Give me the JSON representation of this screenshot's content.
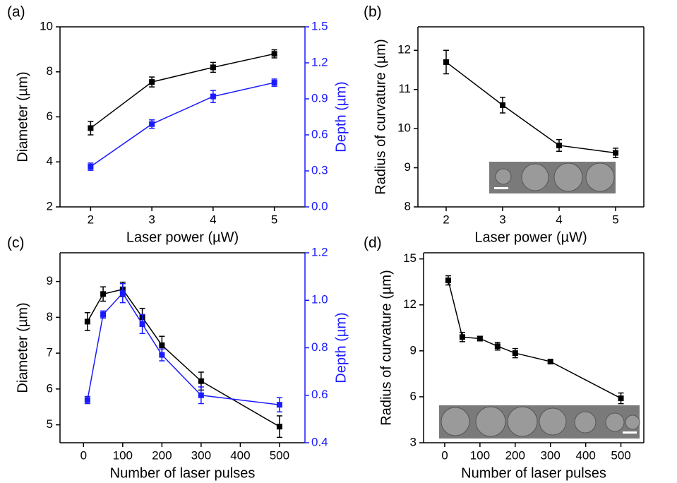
{
  "chart_data": [
    {
      "type": "line",
      "panel_label": "(a)",
      "x_label": "Laser power (µW)",
      "y_label": "Diameter (µm)",
      "y2_label": "Depth (µm)",
      "x": [
        2,
        3,
        4,
        5
      ],
      "xlim": [
        1.5,
        5.5
      ],
      "xticks": [
        2,
        3,
        4,
        5
      ],
      "ylim": [
        2,
        10
      ],
      "yticks": [
        2,
        4,
        6,
        8,
        10
      ],
      "y2lim": [
        0,
        1.5
      ],
      "y2ticks": [
        {
          "value": 0,
          "label": "0.0"
        },
        0.3,
        0.6,
        0.9,
        1.2,
        1.5
      ],
      "series": [
        {
          "color": "#000000",
          "values": [
            5.5,
            7.55,
            8.2,
            8.8
          ],
          "errors": [
            0.3,
            0.22,
            0.22,
            0.18
          ]
        },
        {
          "color": "#1a1aff",
          "axis": "y2",
          "values": [
            0.335,
            0.69,
            0.92,
            1.035
          ],
          "errors": [
            0.03,
            0.035,
            0.05,
            0.03
          ]
        }
      ]
    },
    {
      "type": "line",
      "panel_label": "(b)",
      "x_label": "Laser power (µW)",
      "y_label": "Radius of curvature (µm)",
      "x": [
        2,
        3,
        4,
        5
      ],
      "xlim": [
        1.5,
        5.5
      ],
      "xticks": [
        2,
        3,
        4,
        5
      ],
      "ylim": [
        8,
        12.6
      ],
      "yticks": [
        8,
        9,
        10,
        11,
        12
      ],
      "series": [
        {
          "color": "#000000",
          "values": [
            11.7,
            10.6,
            9.57,
            9.38
          ],
          "errors": [
            0.3,
            0.2,
            0.15,
            0.12
          ]
        }
      ]
    },
    {
      "type": "line",
      "panel_label": "(c)",
      "x_label": "Number of laser pulses",
      "y_label": "Diameter (µm)",
      "y2_label": "Depth (µm)",
      "x": [
        10,
        50,
        100,
        150,
        200,
        300,
        500
      ],
      "xlim": [
        -60,
        565
      ],
      "xticks": [
        0,
        100,
        200,
        300,
        400,
        500
      ],
      "ylim": [
        4.5,
        9.8
      ],
      "yticks": [
        5,
        6,
        7,
        8,
        9
      ],
      "y2lim": [
        0.4,
        1.2
      ],
      "y2ticks": [
        0.4,
        0.6,
        0.8,
        {
          "value": 1.0,
          "label": "1.0"
        },
        1.2
      ],
      "series": [
        {
          "color": "#000000",
          "values": [
            7.88,
            8.65,
            8.78,
            8.0,
            7.22,
            6.22,
            4.95
          ],
          "errors": [
            0.25,
            0.2,
            0.2,
            0.25,
            0.25,
            0.25,
            0.3
          ]
        },
        {
          "color": "#1a1aff",
          "axis": "y2",
          "values": [
            0.58,
            0.94,
            1.03,
            0.9,
            0.77,
            0.6,
            0.56
          ],
          "errors": [
            0.015,
            0.015,
            0.04,
            0.04,
            0.025,
            0.035,
            0.03
          ]
        }
      ]
    },
    {
      "type": "line",
      "panel_label": "(d)",
      "x_label": "Number of laser pulses",
      "y_label": "Radius of curvature (µm)",
      "x": [
        10,
        50,
        100,
        150,
        200,
        300,
        500
      ],
      "xlim": [
        -60,
        565
      ],
      "xticks": [
        0,
        100,
        200,
        300,
        400,
        500
      ],
      "ylim": [
        3,
        15.4
      ],
      "yticks": [
        3,
        6,
        9,
        12,
        15
      ],
      "series": [
        {
          "color": "#000000",
          "values": [
            13.6,
            9.9,
            9.8,
            9.3,
            8.85,
            8.3,
            5.9
          ],
          "errors": [
            0.3,
            0.3,
            0.15,
            0.25,
            0.3,
            0.15,
            0.35
          ]
        }
      ]
    }
  ]
}
